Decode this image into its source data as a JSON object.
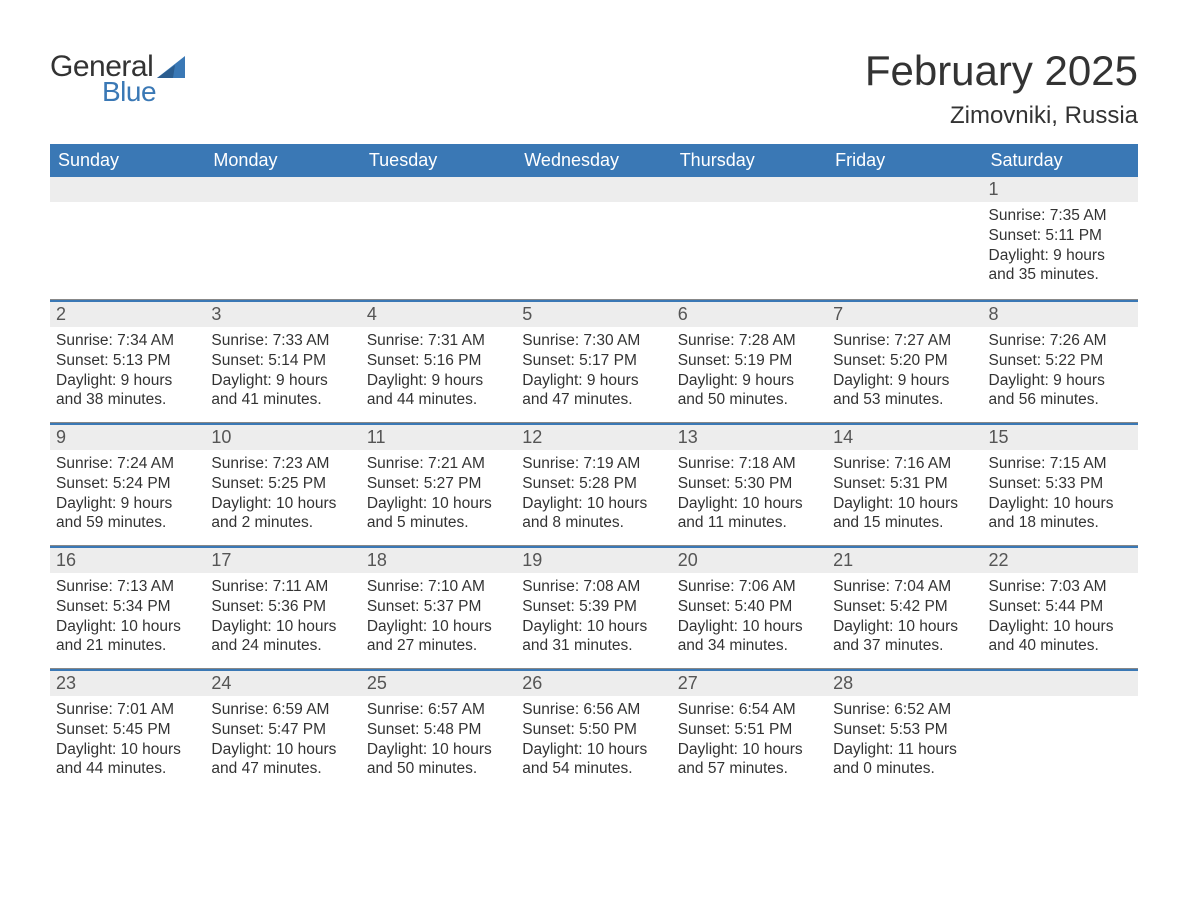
{
  "brand": {
    "word1": "General",
    "word2": "Blue",
    "accent_color": "#3a78b5",
    "text_color": "#333333"
  },
  "title": "February 2025",
  "location": "Zimovniki, Russia",
  "colors": {
    "header_bg": "#3a78b5",
    "header_text": "#ffffff",
    "daynum_bg": "#ededed",
    "daynum_border": "#3a78b5",
    "body_text": "#333333",
    "week_divider": "#888888",
    "page_bg": "#ffffff"
  },
  "weekdays": [
    "Sunday",
    "Monday",
    "Tuesday",
    "Wednesday",
    "Thursday",
    "Friday",
    "Saturday"
  ],
  "weeks": [
    [
      null,
      null,
      null,
      null,
      null,
      null,
      {
        "n": "1",
        "sunrise": "7:35 AM",
        "sunset": "5:11 PM",
        "daylight": "9 hours and 35 minutes."
      }
    ],
    [
      {
        "n": "2",
        "sunrise": "7:34 AM",
        "sunset": "5:13 PM",
        "daylight": "9 hours and 38 minutes."
      },
      {
        "n": "3",
        "sunrise": "7:33 AM",
        "sunset": "5:14 PM",
        "daylight": "9 hours and 41 minutes."
      },
      {
        "n": "4",
        "sunrise": "7:31 AM",
        "sunset": "5:16 PM",
        "daylight": "9 hours and 44 minutes."
      },
      {
        "n": "5",
        "sunrise": "7:30 AM",
        "sunset": "5:17 PM",
        "daylight": "9 hours and 47 minutes."
      },
      {
        "n": "6",
        "sunrise": "7:28 AM",
        "sunset": "5:19 PM",
        "daylight": "9 hours and 50 minutes."
      },
      {
        "n": "7",
        "sunrise": "7:27 AM",
        "sunset": "5:20 PM",
        "daylight": "9 hours and 53 minutes."
      },
      {
        "n": "8",
        "sunrise": "7:26 AM",
        "sunset": "5:22 PM",
        "daylight": "9 hours and 56 minutes."
      }
    ],
    [
      {
        "n": "9",
        "sunrise": "7:24 AM",
        "sunset": "5:24 PM",
        "daylight": "9 hours and 59 minutes."
      },
      {
        "n": "10",
        "sunrise": "7:23 AM",
        "sunset": "5:25 PM",
        "daylight": "10 hours and 2 minutes."
      },
      {
        "n": "11",
        "sunrise": "7:21 AM",
        "sunset": "5:27 PM",
        "daylight": "10 hours and 5 minutes."
      },
      {
        "n": "12",
        "sunrise": "7:19 AM",
        "sunset": "5:28 PM",
        "daylight": "10 hours and 8 minutes."
      },
      {
        "n": "13",
        "sunrise": "7:18 AM",
        "sunset": "5:30 PM",
        "daylight": "10 hours and 11 minutes."
      },
      {
        "n": "14",
        "sunrise": "7:16 AM",
        "sunset": "5:31 PM",
        "daylight": "10 hours and 15 minutes."
      },
      {
        "n": "15",
        "sunrise": "7:15 AM",
        "sunset": "5:33 PM",
        "daylight": "10 hours and 18 minutes."
      }
    ],
    [
      {
        "n": "16",
        "sunrise": "7:13 AM",
        "sunset": "5:34 PM",
        "daylight": "10 hours and 21 minutes."
      },
      {
        "n": "17",
        "sunrise": "7:11 AM",
        "sunset": "5:36 PM",
        "daylight": "10 hours and 24 minutes."
      },
      {
        "n": "18",
        "sunrise": "7:10 AM",
        "sunset": "5:37 PM",
        "daylight": "10 hours and 27 minutes."
      },
      {
        "n": "19",
        "sunrise": "7:08 AM",
        "sunset": "5:39 PM",
        "daylight": "10 hours and 31 minutes."
      },
      {
        "n": "20",
        "sunrise": "7:06 AM",
        "sunset": "5:40 PM",
        "daylight": "10 hours and 34 minutes."
      },
      {
        "n": "21",
        "sunrise": "7:04 AM",
        "sunset": "5:42 PM",
        "daylight": "10 hours and 37 minutes."
      },
      {
        "n": "22",
        "sunrise": "7:03 AM",
        "sunset": "5:44 PM",
        "daylight": "10 hours and 40 minutes."
      }
    ],
    [
      {
        "n": "23",
        "sunrise": "7:01 AM",
        "sunset": "5:45 PM",
        "daylight": "10 hours and 44 minutes."
      },
      {
        "n": "24",
        "sunrise": "6:59 AM",
        "sunset": "5:47 PM",
        "daylight": "10 hours and 47 minutes."
      },
      {
        "n": "25",
        "sunrise": "6:57 AM",
        "sunset": "5:48 PM",
        "daylight": "10 hours and 50 minutes."
      },
      {
        "n": "26",
        "sunrise": "6:56 AM",
        "sunset": "5:50 PM",
        "daylight": "10 hours and 54 minutes."
      },
      {
        "n": "27",
        "sunrise": "6:54 AM",
        "sunset": "5:51 PM",
        "daylight": "10 hours and 57 minutes."
      },
      {
        "n": "28",
        "sunrise": "6:52 AM",
        "sunset": "5:53 PM",
        "daylight": "11 hours and 0 minutes."
      },
      null
    ]
  ],
  "labels": {
    "sunrise_prefix": "Sunrise: ",
    "sunset_prefix": "Sunset: ",
    "daylight_prefix": "Daylight: "
  }
}
